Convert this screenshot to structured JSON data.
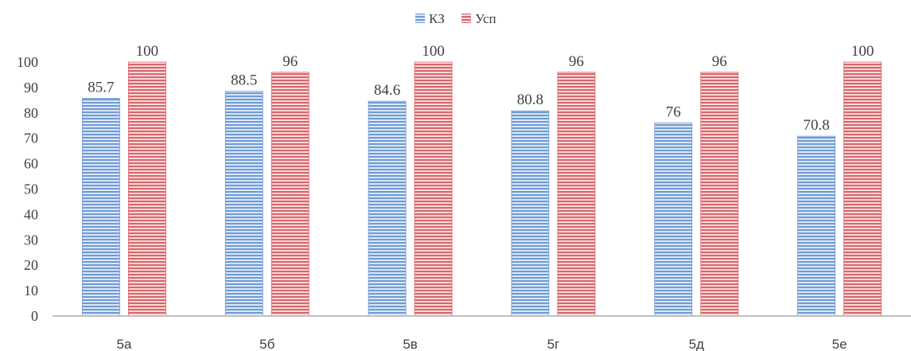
{
  "chart_data": {
    "type": "bar",
    "categories": [
      "5а",
      "5б",
      "5в",
      "5г",
      "5д",
      "5е"
    ],
    "series": [
      {
        "name": "КЗ",
        "values": [
          85.7,
          88.5,
          84.6,
          80.8,
          76,
          70.8
        ],
        "color": "#6f9bd4"
      },
      {
        "name": "Усп",
        "values": [
          100,
          96,
          100,
          96,
          96,
          100
        ],
        "color": "#d9666a"
      }
    ],
    "data_labels": [
      [
        "85.7",
        "88.5",
        "84.6",
        "80.8",
        "76",
        "70.8"
      ],
      [
        "100",
        "96",
        "100",
        "96",
        "96",
        "100"
      ]
    ],
    "yticks": [
      "0",
      "10",
      "20",
      "30",
      "40",
      "50",
      "60",
      "70",
      "80",
      "90",
      "100"
    ],
    "ylim": [
      0,
      100
    ],
    "grid": false,
    "legend_position": "top-center",
    "bar_pattern": "horizontal-stripes"
  }
}
